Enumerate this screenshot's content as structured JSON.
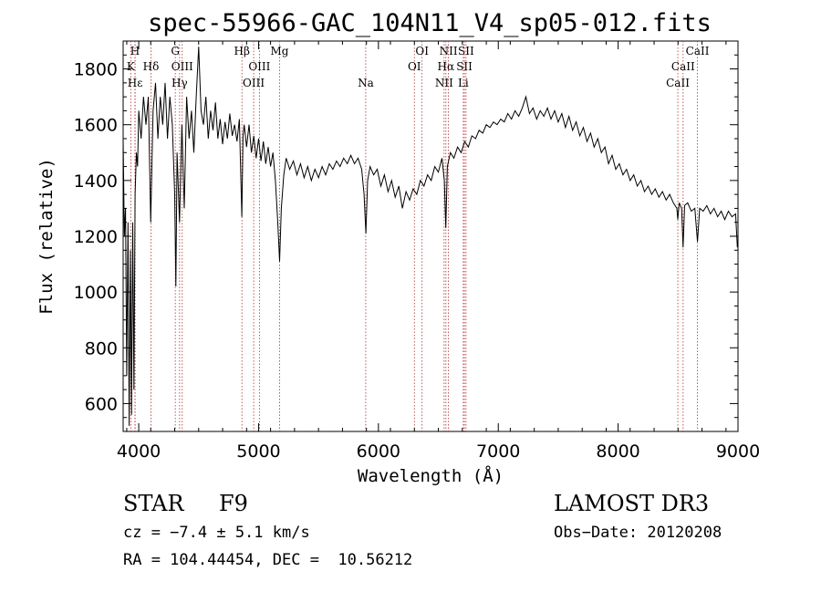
{
  "chart_data": {
    "type": "line",
    "title": "spec-55966-GAC_104N11_V4_sp05-012.fits",
    "xlabel": "Wavelength (Å)",
    "ylabel": "Flux (relative)",
    "xlim": [
      3870,
      9000
    ],
    "ylim": [
      500,
      1900
    ],
    "xticks": [
      4000,
      5000,
      6000,
      7000,
      8000,
      9000
    ],
    "yticks": [
      600,
      800,
      1000,
      1200,
      1400,
      1600,
      1800
    ],
    "line_color": "#000000",
    "marker_color": "#b03030",
    "spectral_lines": [
      {
        "label": "H",
        "wave": 3969,
        "row": 0
      },
      {
        "label": "K",
        "wave": 3934,
        "row": 1
      },
      {
        "label": "Hδ",
        "wave": 4102,
        "row": 1
      },
      {
        "label": "Hε",
        "wave": 3970,
        "row": 2
      },
      {
        "label": "G",
        "wave": 4305,
        "row": 0
      },
      {
        "label": "OIII",
        "wave": 4363,
        "row": 1
      },
      {
        "label": "Hγ",
        "wave": 4341,
        "row": 2
      },
      {
        "label": "Hβ",
        "wave": 4861,
        "row": 0
      },
      {
        "label": "OIII",
        "wave": 5007,
        "row": 1
      },
      {
        "label": "OIII",
        "wave": 4959,
        "row": 2
      },
      {
        "label": "Mg",
        "wave": 5175,
        "row": 0
      },
      {
        "label": "Na",
        "wave": 5894,
        "row": 2
      },
      {
        "label": "OI",
        "wave": 6364,
        "row": 0
      },
      {
        "label": "OI",
        "wave": 6300,
        "row": 1
      },
      {
        "label": "NII",
        "wave": 6584,
        "row": 0
      },
      {
        "label": "Hα",
        "wave": 6563,
        "row": 1
      },
      {
        "label": "NII",
        "wave": 6548,
        "row": 2
      },
      {
        "label": "SII",
        "wave": 6731,
        "row": 0
      },
      {
        "label": "SII",
        "wave": 6717,
        "row": 1
      },
      {
        "label": "Li",
        "wave": 6708,
        "row": 2
      },
      {
        "label": "CaII",
        "wave": 8662,
        "row": 0
      },
      {
        "label": "CaII",
        "wave": 8542,
        "row": 1
      },
      {
        "label": "CaII",
        "wave": 8498,
        "row": 2
      }
    ],
    "spectrum": [
      [
        3870,
        1550
      ],
      [
        3880,
        1200
      ],
      [
        3890,
        1300
      ],
      [
        3900,
        700
      ],
      [
        3910,
        1250
      ],
      [
        3920,
        520
      ],
      [
        3930,
        1150
      ],
      [
        3940,
        560
      ],
      [
        3950,
        1250
      ],
      [
        3960,
        650
      ],
      [
        3970,
        1350
      ],
      [
        3980,
        1500
      ],
      [
        3990,
        1450
      ],
      [
        4000,
        1650
      ],
      [
        4020,
        1550
      ],
      [
        4040,
        1700
      ],
      [
        4060,
        1600
      ],
      [
        4080,
        1700
      ],
      [
        4100,
        1250
      ],
      [
        4120,
        1650
      ],
      [
        4140,
        1750
      ],
      [
        4160,
        1550
      ],
      [
        4180,
        1700
      ],
      [
        4200,
        1600
      ],
      [
        4220,
        1750
      ],
      [
        4240,
        1550
      ],
      [
        4260,
        1700
      ],
      [
        4280,
        1600
      ],
      [
        4300,
        1350
      ],
      [
        4310,
        1020
      ],
      [
        4320,
        1500
      ],
      [
        4340,
        1250
      ],
      [
        4360,
        1600
      ],
      [
        4380,
        1300
      ],
      [
        4400,
        1700
      ],
      [
        4420,
        1550
      ],
      [
        4440,
        1650
      ],
      [
        4460,
        1500
      ],
      [
        4480,
        1700
      ],
      [
        4500,
        1880
      ],
      [
        4520,
        1650
      ],
      [
        4540,
        1600
      ],
      [
        4560,
        1700
      ],
      [
        4580,
        1550
      ],
      [
        4600,
        1650
      ],
      [
        4620,
        1580
      ],
      [
        4640,
        1680
      ],
      [
        4660,
        1550
      ],
      [
        4680,
        1620
      ],
      [
        4700,
        1530
      ],
      [
        4720,
        1610
      ],
      [
        4740,
        1550
      ],
      [
        4760,
        1640
      ],
      [
        4780,
        1560
      ],
      [
        4800,
        1600
      ],
      [
        4820,
        1540
      ],
      [
        4840,
        1620
      ],
      [
        4860,
        1270
      ],
      [
        4870,
        1560
      ],
      [
        4880,
        1600
      ],
      [
        4900,
        1520
      ],
      [
        4920,
        1600
      ],
      [
        4940,
        1500
      ],
      [
        4960,
        1560
      ],
      [
        4980,
        1480
      ],
      [
        5000,
        1550
      ],
      [
        5020,
        1470
      ],
      [
        5040,
        1540
      ],
      [
        5060,
        1460
      ],
      [
        5080,
        1520
      ],
      [
        5100,
        1450
      ],
      [
        5120,
        1500
      ],
      [
        5140,
        1400
      ],
      [
        5160,
        1250
      ],
      [
        5175,
        1110
      ],
      [
        5190,
        1300
      ],
      [
        5210,
        1420
      ],
      [
        5230,
        1480
      ],
      [
        5260,
        1440
      ],
      [
        5290,
        1470
      ],
      [
        5320,
        1420
      ],
      [
        5350,
        1460
      ],
      [
        5380,
        1410
      ],
      [
        5410,
        1450
      ],
      [
        5440,
        1400
      ],
      [
        5470,
        1440
      ],
      [
        5500,
        1410
      ],
      [
        5530,
        1450
      ],
      [
        5560,
        1420
      ],
      [
        5590,
        1460
      ],
      [
        5620,
        1440
      ],
      [
        5650,
        1470
      ],
      [
        5680,
        1450
      ],
      [
        5710,
        1480
      ],
      [
        5740,
        1460
      ],
      [
        5770,
        1490
      ],
      [
        5800,
        1460
      ],
      [
        5830,
        1480
      ],
      [
        5860,
        1440
      ],
      [
        5880,
        1350
      ],
      [
        5895,
        1210
      ],
      [
        5910,
        1400
      ],
      [
        5930,
        1450
      ],
      [
        5960,
        1420
      ],
      [
        5990,
        1440
      ],
      [
        6020,
        1380
      ],
      [
        6050,
        1420
      ],
      [
        6080,
        1360
      ],
      [
        6110,
        1400
      ],
      [
        6140,
        1340
      ],
      [
        6170,
        1380
      ],
      [
        6200,
        1300
      ],
      [
        6230,
        1360
      ],
      [
        6260,
        1330
      ],
      [
        6290,
        1370
      ],
      [
        6320,
        1350
      ],
      [
        6350,
        1400
      ],
      [
        6380,
        1380
      ],
      [
        6410,
        1420
      ],
      [
        6440,
        1400
      ],
      [
        6470,
        1450
      ],
      [
        6500,
        1430
      ],
      [
        6530,
        1480
      ],
      [
        6550,
        1400
      ],
      [
        6562,
        1230
      ],
      [
        6575,
        1450
      ],
      [
        6600,
        1500
      ],
      [
        6630,
        1480
      ],
      [
        6660,
        1520
      ],
      [
        6690,
        1500
      ],
      [
        6720,
        1540
      ],
      [
        6750,
        1520
      ],
      [
        6780,
        1560
      ],
      [
        6810,
        1550
      ],
      [
        6840,
        1580
      ],
      [
        6870,
        1570
      ],
      [
        6900,
        1600
      ],
      [
        6930,
        1590
      ],
      [
        6960,
        1610
      ],
      [
        6990,
        1600
      ],
      [
        7020,
        1620
      ],
      [
        7050,
        1610
      ],
      [
        7080,
        1640
      ],
      [
        7110,
        1620
      ],
      [
        7140,
        1650
      ],
      [
        7170,
        1630
      ],
      [
        7200,
        1660
      ],
      [
        7230,
        1700
      ],
      [
        7260,
        1640
      ],
      [
        7290,
        1660
      ],
      [
        7320,
        1620
      ],
      [
        7350,
        1650
      ],
      [
        7380,
        1630
      ],
      [
        7410,
        1660
      ],
      [
        7440,
        1620
      ],
      [
        7470,
        1650
      ],
      [
        7500,
        1610
      ],
      [
        7530,
        1640
      ],
      [
        7560,
        1590
      ],
      [
        7590,
        1630
      ],
      [
        7620,
        1580
      ],
      [
        7650,
        1610
      ],
      [
        7680,
        1560
      ],
      [
        7710,
        1590
      ],
      [
        7740,
        1540
      ],
      [
        7770,
        1570
      ],
      [
        7800,
        1520
      ],
      [
        7830,
        1550
      ],
      [
        7860,
        1500
      ],
      [
        7890,
        1520
      ],
      [
        7920,
        1460
      ],
      [
        7950,
        1490
      ],
      [
        7980,
        1440
      ],
      [
        8010,
        1460
      ],
      [
        8040,
        1420
      ],
      [
        8070,
        1440
      ],
      [
        8100,
        1400
      ],
      [
        8130,
        1420
      ],
      [
        8160,
        1380
      ],
      [
        8190,
        1400
      ],
      [
        8220,
        1360
      ],
      [
        8250,
        1380
      ],
      [
        8280,
        1350
      ],
      [
        8310,
        1370
      ],
      [
        8340,
        1340
      ],
      [
        8370,
        1360
      ],
      [
        8400,
        1330
      ],
      [
        8430,
        1350
      ],
      [
        8460,
        1320
      ],
      [
        8490,
        1300
      ],
      [
        8498,
        1260
      ],
      [
        8510,
        1320
      ],
      [
        8530,
        1300
      ],
      [
        8542,
        1160
      ],
      [
        8555,
        1310
      ],
      [
        8580,
        1320
      ],
      [
        8610,
        1290
      ],
      [
        8640,
        1300
      ],
      [
        8662,
        1180
      ],
      [
        8680,
        1300
      ],
      [
        8710,
        1290
      ],
      [
        8740,
        1310
      ],
      [
        8770,
        1280
      ],
      [
        8800,
        1300
      ],
      [
        8830,
        1270
      ],
      [
        8860,
        1290
      ],
      [
        8890,
        1260
      ],
      [
        8920,
        1290
      ],
      [
        8950,
        1270
      ],
      [
        8980,
        1280
      ],
      [
        8995,
        1160
      ]
    ]
  },
  "info": {
    "class_label": "STAR",
    "subclass": "F9",
    "survey": "LAMOST DR3",
    "cz": "cz = −7.4 ± 5.1 km/s",
    "obs_date": "Obs−Date: 20120208",
    "coords": "RA = 104.44454, DEC =  10.56212"
  }
}
